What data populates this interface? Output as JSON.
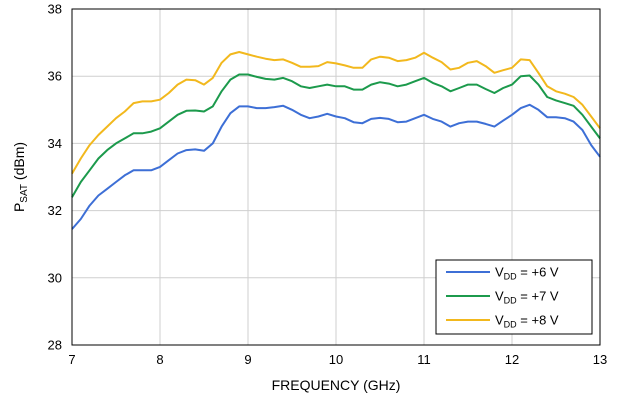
{
  "chart_data": {
    "type": "line",
    "xlabel": "FREQUENCY (GHz)",
    "ylabel": {
      "main": "P",
      "sub": "SAT",
      "unit": " (dBm)"
    },
    "xlim": [
      7,
      13
    ],
    "ylim": [
      28,
      38
    ],
    "xticks": [
      7,
      8,
      9,
      10,
      11,
      12,
      13
    ],
    "yticks": [
      28,
      30,
      32,
      34,
      36,
      38
    ],
    "grid": true,
    "legend_position": "bottom-right",
    "series": [
      {
        "name": {
          "prefix": "V",
          "sub": "DD",
          "suffix": " = +6 V"
        },
        "color": "#3d6fd6",
        "points": [
          [
            7.0,
            31.45
          ],
          [
            7.1,
            31.75
          ],
          [
            7.2,
            32.15
          ],
          [
            7.3,
            32.45
          ],
          [
            7.4,
            32.65
          ],
          [
            7.5,
            32.85
          ],
          [
            7.6,
            33.05
          ],
          [
            7.7,
            33.2
          ],
          [
            7.8,
            33.2
          ],
          [
            7.9,
            33.2
          ],
          [
            8.0,
            33.3
          ],
          [
            8.1,
            33.5
          ],
          [
            8.2,
            33.7
          ],
          [
            8.3,
            33.8
          ],
          [
            8.4,
            33.82
          ],
          [
            8.5,
            33.78
          ],
          [
            8.6,
            34.0
          ],
          [
            8.7,
            34.5
          ],
          [
            8.8,
            34.9
          ],
          [
            8.9,
            35.1
          ],
          [
            9.0,
            35.1
          ],
          [
            9.1,
            35.05
          ],
          [
            9.2,
            35.05
          ],
          [
            9.3,
            35.08
          ],
          [
            9.4,
            35.12
          ],
          [
            9.5,
            35.0
          ],
          [
            9.6,
            34.85
          ],
          [
            9.7,
            34.75
          ],
          [
            9.8,
            34.8
          ],
          [
            9.9,
            34.88
          ],
          [
            10.0,
            34.8
          ],
          [
            10.1,
            34.75
          ],
          [
            10.2,
            34.63
          ],
          [
            10.3,
            34.6
          ],
          [
            10.4,
            34.73
          ],
          [
            10.5,
            34.76
          ],
          [
            10.6,
            34.73
          ],
          [
            10.7,
            34.63
          ],
          [
            10.8,
            34.65
          ],
          [
            10.9,
            34.75
          ],
          [
            11.0,
            34.85
          ],
          [
            11.1,
            34.73
          ],
          [
            11.2,
            34.65
          ],
          [
            11.3,
            34.5
          ],
          [
            11.4,
            34.6
          ],
          [
            11.5,
            34.65
          ],
          [
            11.6,
            34.65
          ],
          [
            11.7,
            34.58
          ],
          [
            11.8,
            34.5
          ],
          [
            11.9,
            34.68
          ],
          [
            12.0,
            34.85
          ],
          [
            12.1,
            35.05
          ],
          [
            12.2,
            35.15
          ],
          [
            12.3,
            35.0
          ],
          [
            12.4,
            34.78
          ],
          [
            12.5,
            34.78
          ],
          [
            12.6,
            34.75
          ],
          [
            12.7,
            34.65
          ],
          [
            12.8,
            34.4
          ],
          [
            12.9,
            33.95
          ],
          [
            13.0,
            33.6
          ]
        ]
      },
      {
        "name": {
          "prefix": "V",
          "sub": "DD",
          "suffix": " = +7 V"
        },
        "color": "#1c9a4c",
        "points": [
          [
            7.0,
            32.4
          ],
          [
            7.1,
            32.85
          ],
          [
            7.2,
            33.2
          ],
          [
            7.3,
            33.55
          ],
          [
            7.4,
            33.8
          ],
          [
            7.5,
            34.0
          ],
          [
            7.6,
            34.15
          ],
          [
            7.7,
            34.3
          ],
          [
            7.8,
            34.3
          ],
          [
            7.9,
            34.35
          ],
          [
            8.0,
            34.45
          ],
          [
            8.1,
            34.65
          ],
          [
            8.2,
            34.85
          ],
          [
            8.3,
            34.97
          ],
          [
            8.4,
            34.98
          ],
          [
            8.5,
            34.95
          ],
          [
            8.6,
            35.1
          ],
          [
            8.7,
            35.55
          ],
          [
            8.8,
            35.9
          ],
          [
            8.9,
            36.05
          ],
          [
            9.0,
            36.05
          ],
          [
            9.1,
            35.98
          ],
          [
            9.2,
            35.92
          ],
          [
            9.3,
            35.9
          ],
          [
            9.4,
            35.95
          ],
          [
            9.5,
            35.85
          ],
          [
            9.6,
            35.7
          ],
          [
            9.7,
            35.65
          ],
          [
            9.8,
            35.7
          ],
          [
            9.9,
            35.75
          ],
          [
            10.0,
            35.7
          ],
          [
            10.1,
            35.7
          ],
          [
            10.2,
            35.6
          ],
          [
            10.3,
            35.6
          ],
          [
            10.4,
            35.75
          ],
          [
            10.5,
            35.82
          ],
          [
            10.6,
            35.78
          ],
          [
            10.7,
            35.7
          ],
          [
            10.8,
            35.75
          ],
          [
            10.9,
            35.85
          ],
          [
            11.0,
            35.95
          ],
          [
            11.1,
            35.8
          ],
          [
            11.2,
            35.7
          ],
          [
            11.3,
            35.55
          ],
          [
            11.4,
            35.65
          ],
          [
            11.5,
            35.75
          ],
          [
            11.6,
            35.75
          ],
          [
            11.7,
            35.62
          ],
          [
            11.8,
            35.5
          ],
          [
            11.9,
            35.65
          ],
          [
            12.0,
            35.75
          ],
          [
            12.1,
            36.0
          ],
          [
            12.2,
            36.02
          ],
          [
            12.3,
            35.75
          ],
          [
            12.4,
            35.38
          ],
          [
            12.5,
            35.28
          ],
          [
            12.6,
            35.2
          ],
          [
            12.7,
            35.12
          ],
          [
            12.8,
            34.85
          ],
          [
            12.9,
            34.5
          ],
          [
            13.0,
            34.15
          ]
        ]
      },
      {
        "name": {
          "prefix": "V",
          "sub": "DD",
          "suffix": " = +8 V"
        },
        "color": "#f2b81d",
        "points": [
          [
            7.0,
            33.1
          ],
          [
            7.1,
            33.55
          ],
          [
            7.2,
            33.95
          ],
          [
            7.3,
            34.25
          ],
          [
            7.4,
            34.5
          ],
          [
            7.5,
            34.75
          ],
          [
            7.6,
            34.95
          ],
          [
            7.7,
            35.2
          ],
          [
            7.8,
            35.25
          ],
          [
            7.9,
            35.25
          ],
          [
            8.0,
            35.3
          ],
          [
            8.1,
            35.5
          ],
          [
            8.2,
            35.75
          ],
          [
            8.3,
            35.9
          ],
          [
            8.4,
            35.88
          ],
          [
            8.5,
            35.75
          ],
          [
            8.6,
            35.95
          ],
          [
            8.7,
            36.4
          ],
          [
            8.8,
            36.65
          ],
          [
            8.9,
            36.72
          ],
          [
            9.0,
            36.65
          ],
          [
            9.1,
            36.58
          ],
          [
            9.2,
            36.52
          ],
          [
            9.3,
            36.48
          ],
          [
            9.4,
            36.5
          ],
          [
            9.5,
            36.4
          ],
          [
            9.6,
            36.28
          ],
          [
            9.7,
            36.28
          ],
          [
            9.8,
            36.3
          ],
          [
            9.9,
            36.42
          ],
          [
            10.0,
            36.38
          ],
          [
            10.1,
            36.32
          ],
          [
            10.2,
            36.25
          ],
          [
            10.3,
            36.25
          ],
          [
            10.4,
            36.5
          ],
          [
            10.5,
            36.58
          ],
          [
            10.6,
            36.55
          ],
          [
            10.7,
            36.45
          ],
          [
            10.8,
            36.48
          ],
          [
            10.9,
            36.55
          ],
          [
            11.0,
            36.7
          ],
          [
            11.1,
            36.55
          ],
          [
            11.2,
            36.42
          ],
          [
            11.3,
            36.2
          ],
          [
            11.4,
            36.25
          ],
          [
            11.5,
            36.4
          ],
          [
            11.6,
            36.45
          ],
          [
            11.7,
            36.3
          ],
          [
            11.8,
            36.1
          ],
          [
            11.9,
            36.18
          ],
          [
            12.0,
            36.25
          ],
          [
            12.1,
            36.5
          ],
          [
            12.2,
            36.48
          ],
          [
            12.3,
            36.1
          ],
          [
            12.4,
            35.7
          ],
          [
            12.5,
            35.55
          ],
          [
            12.6,
            35.48
          ],
          [
            12.7,
            35.38
          ],
          [
            12.8,
            35.15
          ],
          [
            12.9,
            34.8
          ],
          [
            13.0,
            34.45
          ]
        ]
      }
    ]
  }
}
